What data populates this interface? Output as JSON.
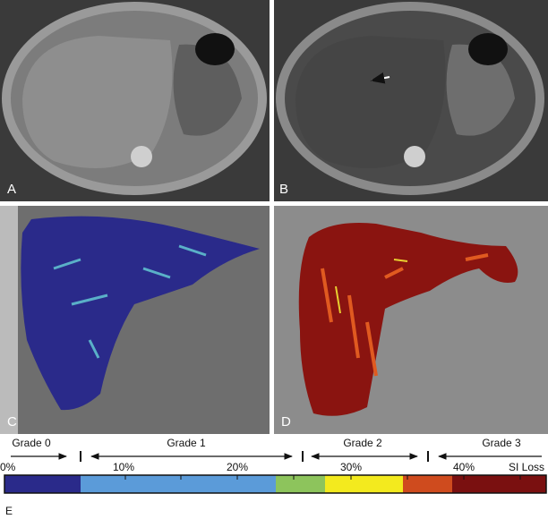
{
  "panels": [
    {
      "label": "A"
    },
    {
      "label": "B"
    },
    {
      "label": "C"
    },
    {
      "label": "D"
    }
  ],
  "scale": {
    "label": "E",
    "grades": [
      "Grade 0",
      "Grade 1",
      "Grade 2",
      "Grade 3"
    ],
    "ticks": [
      "0%",
      "10%",
      "20%",
      "30%",
      "40%"
    ],
    "unit": "SI Loss"
  }
}
